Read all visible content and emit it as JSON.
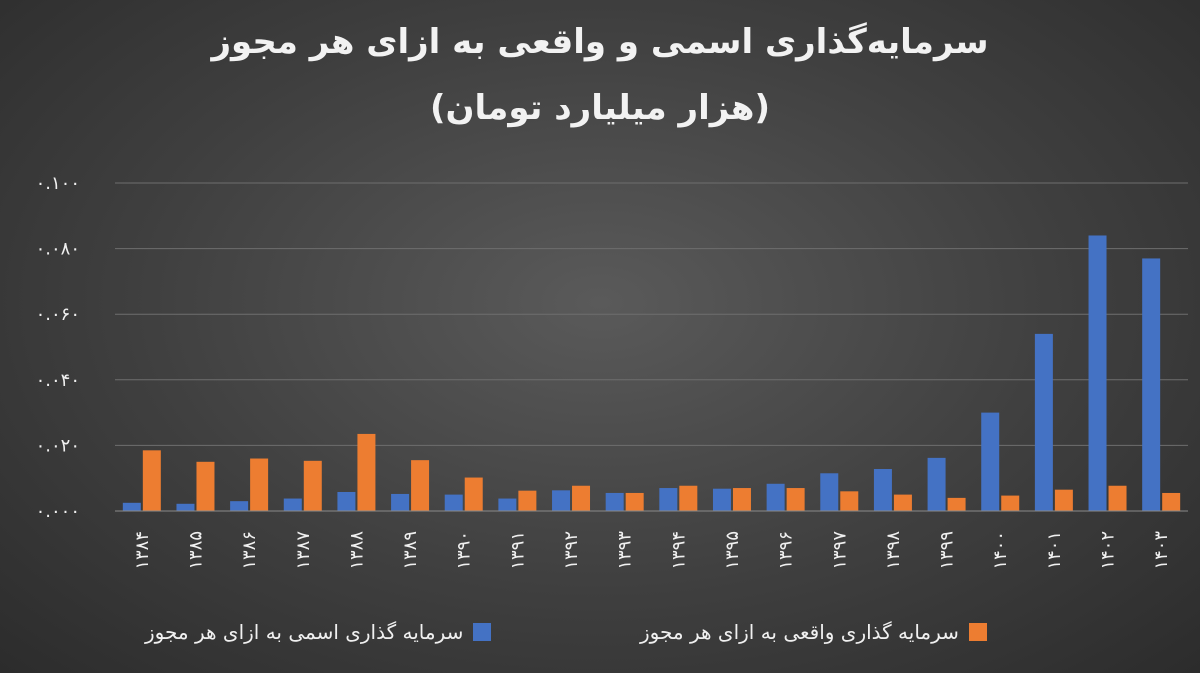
{
  "colors": {
    "series1": "#4472C4",
    "series2": "#ED7D31",
    "grid": "#6e6e6e",
    "text": "#f0f0f0"
  },
  "chart_data": {
    "type": "bar",
    "title": "سرمایه‌گذاری اسمی و واقعی به ازای هر مجوز",
    "subtitle": "(هزار میلیارد تومان)",
    "ylim": [
      0,
      0.1
    ],
    "yticks": [
      0.0,
      0.02,
      0.04,
      0.06,
      0.08,
      0.1
    ],
    "ytick_labels": [
      "۰.۰۰۰",
      "۰.۰۲۰",
      "۰.۰۴۰",
      "۰.۰۶۰",
      "۰.۰۸۰",
      "۰.۱۰۰"
    ],
    "grid": true,
    "legend_position": "bottom",
    "categories": [
      "۱۳۸۴",
      "۱۳۸۵",
      "۱۳۸۶",
      "۱۳۸۷",
      "۱۳۸۸",
      "۱۳۸۹",
      "۱۳۹۰",
      "۱۳۹۱",
      "۱۳۹۲",
      "۱۳۹۳",
      "۱۳۹۴",
      "۱۳۹۵",
      "۱۳۹۶",
      "۱۳۹۷",
      "۱۳۹۸",
      "۱۳۹۹",
      "۱۴۰۰",
      "۱۴۰۱",
      "۱۴۰۲",
      "۱۴۰۳"
    ],
    "series": [
      {
        "name": "سرمایه گذاری اسمی به ازای هر مجوز",
        "values": [
          0.0025,
          0.0022,
          0.003,
          0.0038,
          0.0058,
          0.0052,
          0.005,
          0.0038,
          0.0063,
          0.0055,
          0.007,
          0.0068,
          0.0083,
          0.0115,
          0.0128,
          0.0162,
          0.03,
          0.054,
          0.084,
          0.077
        ]
      },
      {
        "name": "سرمایه گذاری واقعی به ازای هر مجوز",
        "values": [
          0.0185,
          0.015,
          0.016,
          0.0153,
          0.0235,
          0.0155,
          0.0102,
          0.0062,
          0.0077,
          0.0055,
          0.0077,
          0.007,
          0.007,
          0.006,
          0.005,
          0.004,
          0.0047,
          0.0065,
          0.0077,
          0.0055
        ]
      }
    ]
  }
}
